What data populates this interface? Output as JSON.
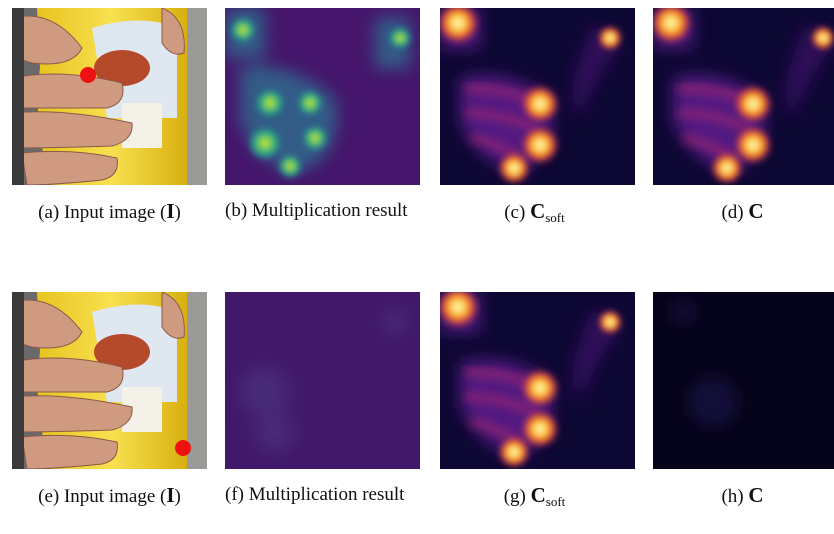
{
  "panels": [
    {
      "caption": {
        "label": "(a)",
        "text": "Input image (",
        "symbol": "I",
        "after": ")"
      }
    },
    {
      "caption": {
        "label": "(b)",
        "text": "Multiplication result"
      }
    },
    {
      "caption": {
        "label": "(c)",
        "symbol": "C",
        "subscript": "soft"
      }
    },
    {
      "caption": {
        "label": "(d)",
        "symbol": "C"
      }
    },
    {
      "caption": {
        "label": "(e)",
        "text": "Input image (",
        "symbol": "I",
        "after": ")"
      }
    },
    {
      "caption": {
        "label": "(f)",
        "text": "Multiplication result"
      }
    },
    {
      "caption": {
        "label": "(g)",
        "symbol": "C",
        "subscript": "soft"
      }
    },
    {
      "caption": {
        "label": "(h)",
        "symbol": "C"
      }
    }
  ]
}
